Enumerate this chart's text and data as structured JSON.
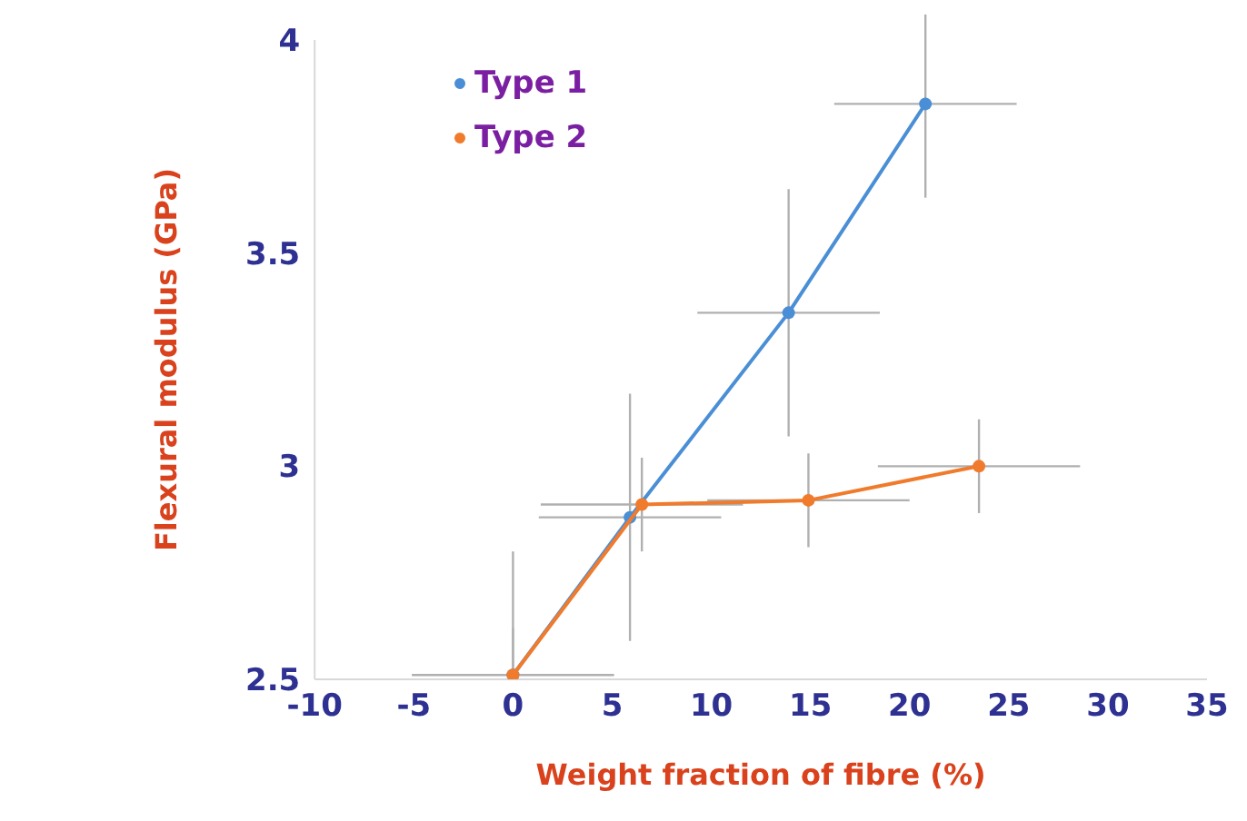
{
  "chart_data": {
    "type": "line",
    "xlabel": "Weight fraction of fibre (%)",
    "ylabel": "Flexural modulus (GPa)",
    "xlim": [
      -10,
      35
    ],
    "xticks": [
      -10,
      -5,
      0,
      5,
      10,
      15,
      20,
      25,
      30,
      35
    ],
    "ylim": [
      2.5,
      4
    ],
    "yticks": [
      2.5,
      3,
      3.5,
      4
    ],
    "grid": false,
    "legend": "top left",
    "marker": "circle",
    "series": [
      {
        "name": "Type 1",
        "color": "#4a8fd6",
        "x": [
          0,
          5.9,
          13.9,
          20.8
        ],
        "values": [
          2.51,
          2.88,
          3.36,
          3.85
        ],
        "errors": [
          [
            2.5,
            2.8
          ],
          0.29,
          0.29,
          0.22
        ],
        "xerrors": [
          5.1,
          4.6,
          4.6,
          4.6
        ]
      },
      {
        "name": "Type 2",
        "color": "#f07b2c",
        "x": [
          0,
          6.5,
          14.9,
          23.5
        ],
        "values": [
          2.51,
          2.91,
          2.92,
          3.0
        ],
        "errors": [
          [
            2.5,
            2.62
          ],
          0.11,
          0.11,
          0.11
        ],
        "xerrors": [
          null,
          5.1,
          5.1,
          5.1
        ]
      }
    ]
  }
}
